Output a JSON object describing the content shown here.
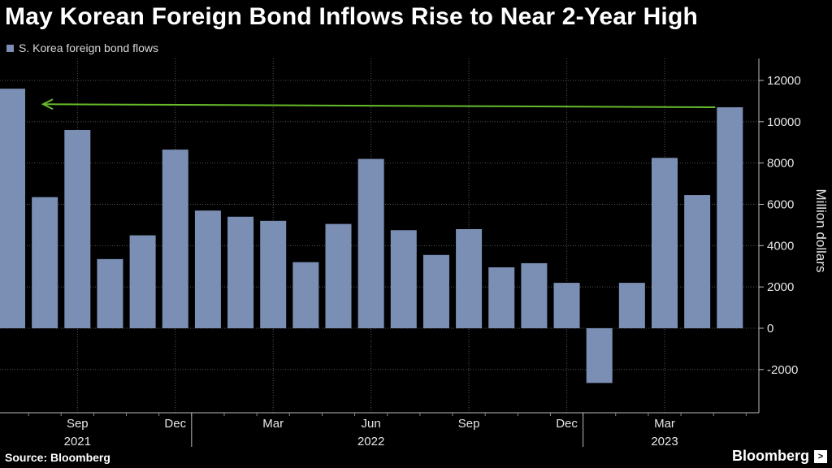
{
  "header": {
    "title": "May Korean Foreign Bond Inflows Rise to Near 2-Year High"
  },
  "footer": {
    "source": "Source: Bloomberg",
    "brand": "Bloomberg"
  },
  "colors": {
    "bar": "#7b8fb5",
    "arrow": "#66bb2a",
    "grid": "#555555",
    "background": "#000000"
  },
  "chart_data": {
    "type": "bar",
    "legend": "S. Korea foreign bond flows",
    "ylabel": "Million dollars",
    "ylim": [
      -3900,
      12800
    ],
    "yticks": [
      -2000,
      0,
      2000,
      4000,
      6000,
      8000,
      10000,
      12000
    ],
    "months": [
      "2021-07",
      "2021-08",
      "2021-09",
      "2021-10",
      "2021-11",
      "2021-12",
      "2022-01",
      "2022-02",
      "2022-03",
      "2022-04",
      "2022-05",
      "2022-06",
      "2022-07",
      "2022-08",
      "2022-09",
      "2022-10",
      "2022-11",
      "2022-12",
      "2023-01",
      "2023-02",
      "2023-03",
      "2023-04",
      "2023-05"
    ],
    "values": [
      11600,
      6350,
      9600,
      3350,
      4500,
      8650,
      5700,
      5400,
      5200,
      3200,
      5050,
      8200,
      4750,
      3550,
      4800,
      2950,
      3150,
      2200,
      -2650,
      2200,
      8250,
      6450,
      10700
    ],
    "xtick_labels": [
      {
        "index": 2,
        "label": "Sep"
      },
      {
        "index": 5,
        "label": "Dec"
      },
      {
        "index": 8,
        "label": "Mar"
      },
      {
        "index": 11,
        "label": "Jun"
      },
      {
        "index": 14,
        "label": "Sep"
      },
      {
        "index": 17,
        "label": "Dec"
      },
      {
        "index": 20,
        "label": "Mar"
      }
    ],
    "year_labels": [
      {
        "index": 2,
        "label": "2021"
      },
      {
        "index": 11,
        "label": "2022"
      },
      {
        "index": 20,
        "label": "2023"
      }
    ],
    "year_separators": [
      5.5,
      17.5
    ],
    "annotation": {
      "type": "arrow",
      "from_index": 22,
      "to_index": 0,
      "from_value": 10700,
      "to_value": 10850
    }
  }
}
